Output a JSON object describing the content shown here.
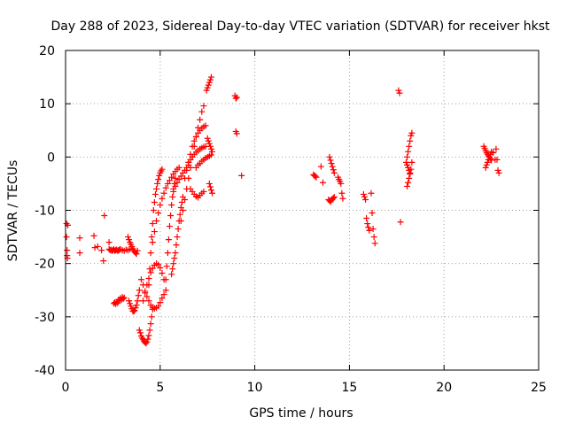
{
  "chart_data": {
    "type": "scatter",
    "title": "Day 288 of 2023, Sidereal Day-to-day VTEC variation (SDTVAR) for receiver hkst",
    "xlabel": "GPS time / hours",
    "ylabel": "SDTVAR / TECUs",
    "xlim": [
      0,
      25
    ],
    "ylim": [
      -40,
      20
    ],
    "x_ticks": [
      0,
      5,
      10,
      15,
      20,
      25
    ],
    "y_ticks": [
      -40,
      -30,
      -20,
      -10,
      0,
      10,
      20
    ],
    "grid": true,
    "marker": "plus",
    "color": "#ff0000",
    "series": [
      {
        "name": "SDTVAR",
        "segments": [
          {
            "x": [
              0.05,
              0.05,
              0.08,
              0.08,
              0.1,
              0.12
            ],
            "y": [
              -12.5,
              -15.0,
              -17.5,
              -18.5,
              -19.0,
              -12.8
            ]
          },
          {
            "x": [
              0.75,
              0.75,
              1.55,
              1.5,
              1.7,
              1.9,
              2.0,
              2.05,
              2.3
            ],
            "y": [
              -15.2,
              -18.0,
              -17.0,
              -14.8,
              -16.8,
              -17.5,
              -19.5,
              -11.0,
              -16.0
            ]
          },
          {
            "x": [
              2.3,
              2.35,
              2.4,
              2.45,
              2.5,
              2.55,
              2.6,
              2.65,
              2.7,
              2.75,
              2.8,
              2.85,
              2.9,
              3.0,
              3.1,
              3.2,
              3.3,
              3.4
            ],
            "y": [
              -17.3,
              -17.5,
              -17.4,
              -17.6,
              -17.5,
              -17.3,
              -17.6,
              -17.5,
              -17.4,
              -17.6,
              -17.5,
              -17.4,
              -17.3,
              -17.5,
              -17.6,
              -17.4,
              -17.5,
              -17.3
            ]
          },
          {
            "x": [
              2.55,
              2.6,
              2.65,
              2.7,
              2.75,
              2.8,
              2.85,
              2.9,
              2.95,
              3.0,
              3.05,
              3.1
            ],
            "y": [
              -27.5,
              -27.3,
              -27.6,
              -27.2,
              -27.4,
              -26.8,
              -27.0,
              -26.5,
              -26.8,
              -26.3,
              -26.6,
              -26.4
            ]
          },
          {
            "x": [
              3.3,
              3.35,
              3.4,
              3.45,
              3.5,
              3.55,
              3.6,
              3.65,
              3.7,
              3.75,
              3.8
            ],
            "y": [
              -15.0,
              -15.5,
              -16.0,
              -16.4,
              -16.8,
              -17.2,
              -17.5,
              -17.8,
              -18.0,
              -18.2,
              -17.6
            ]
          },
          {
            "x": [
              3.35,
              3.4,
              3.45,
              3.5,
              3.55,
              3.6,
              3.65,
              3.7,
              3.75,
              3.8,
              3.85,
              3.9
            ],
            "y": [
              -27.0,
              -27.5,
              -28.0,
              -28.5,
              -28.9,
              -29.0,
              -28.8,
              -28.3,
              -27.8,
              -27.0,
              -26.0,
              -25.0
            ]
          },
          {
            "x": [
              3.9,
              3.95,
              4.0,
              4.05,
              4.1,
              4.15,
              4.2,
              4.25,
              4.3,
              4.35,
              4.4,
              4.45,
              4.5,
              4.55,
              4.6
            ],
            "y": [
              -32.5,
              -33.0,
              -33.6,
              -34.0,
              -34.3,
              -34.6,
              -34.8,
              -35.0,
              -34.7,
              -34.2,
              -33.5,
              -32.5,
              -31.3,
              -30.0,
              -28.6
            ]
          },
          {
            "x": [
              4.0,
              4.1,
              4.2,
              4.3,
              4.4,
              4.5,
              4.6,
              4.7,
              4.8,
              4.9,
              5.0,
              5.1,
              5.2,
              5.3
            ],
            "y": [
              -23.0,
              -24.0,
              -25.2,
              -26.2,
              -27.0,
              -27.8,
              -28.2,
              -28.4,
              -28.3,
              -28.0,
              -27.3,
              -26.5,
              -25.8,
              -25.0
            ]
          },
          {
            "x": [
              4.1,
              4.2,
              4.3,
              4.4,
              4.5,
              4.6,
              4.7,
              4.8,
              4.9,
              5.0,
              5.1,
              5.2
            ],
            "y": [
              -27.0,
              -25.5,
              -24.0,
              -22.8,
              -21.7,
              -20.9,
              -20.3,
              -20.0,
              -20.2,
              -20.8,
              -21.8,
              -23.0
            ]
          },
          {
            "x": [
              4.4,
              4.45,
              4.5,
              4.55,
              4.6,
              4.65,
              4.7,
              4.75,
              4.8,
              4.85,
              4.9,
              4.95,
              5.0,
              5.05,
              5.1
            ],
            "y": [
              -24.0,
              -21.0,
              -18.0,
              -15.0,
              -12.5,
              -10.0,
              -8.5,
              -7.0,
              -6.0,
              -5.0,
              -4.2,
              -3.5,
              -3.0,
              -2.6,
              -2.3
            ]
          },
          {
            "x": [
              4.6,
              4.7,
              4.8,
              4.9,
              5.0,
              5.1,
              5.2,
              5.3,
              5.4,
              5.5,
              5.6,
              5.7,
              5.8,
              5.9,
              6.0
            ],
            "y": [
              -16.0,
              -14.0,
              -12.0,
              -10.5,
              -9.0,
              -7.8,
              -6.8,
              -5.8,
              -5.0,
              -4.4,
              -3.8,
              -3.2,
              -2.7,
              -2.3,
              -2.0
            ]
          },
          {
            "x": [
              5.3,
              5.35,
              5.4,
              5.45,
              5.5,
              5.55,
              5.6,
              5.65,
              5.7,
              5.75,
              5.8
            ],
            "y": [
              -23.0,
              -20.5,
              -18.0,
              -15.5,
              -13.0,
              -11.0,
              -9.0,
              -7.5,
              -6.0,
              -5.0,
              -4.0
            ]
          },
          {
            "x": [
              5.6,
              5.65,
              5.7,
              5.75,
              5.8,
              5.85,
              5.9,
              5.95,
              6.0,
              6.05,
              6.1,
              6.15,
              6.2
            ],
            "y": [
              -22.0,
              -21.0,
              -20.0,
              -19.0,
              -18.0,
              -16.5,
              -15.0,
              -13.5,
              -12.0,
              -10.8,
              -9.5,
              -8.5,
              -7.5
            ]
          },
          {
            "x": [
              5.7,
              5.8,
              5.9,
              6.0,
              6.1,
              6.2,
              6.3,
              6.4,
              6.5
            ],
            "y": [
              -6.5,
              -5.5,
              -4.8,
              -4.2,
              -3.6,
              -3.0,
              -2.5,
              -2.0,
              -1.5
            ]
          },
          {
            "x": [
              6.1,
              6.2,
              6.3,
              6.4,
              6.5,
              6.6,
              6.7,
              6.8,
              6.9,
              7.0,
              7.1,
              7.2,
              7.3
            ],
            "y": [
              -12.0,
              -10.0,
              -8.0,
              -6.0,
              -4.0,
              -2.0,
              0.0,
              2.0,
              3.8,
              5.5,
              7.0,
              8.5,
              9.6
            ]
          },
          {
            "x": [
              6.3,
              6.4,
              6.5,
              6.6,
              6.7,
              6.8,
              6.9,
              7.0,
              7.1,
              7.2,
              7.3,
              7.4
            ],
            "y": [
              -4.0,
              -2.5,
              -1.0,
              0.5,
              2.0,
              3.0,
              3.8,
              4.5,
              5.0,
              5.4,
              5.7,
              5.9
            ]
          },
          {
            "x": [
              6.5,
              6.6,
              6.7,
              6.8,
              6.9,
              7.0,
              7.1,
              7.2,
              7.3,
              7.4
            ],
            "y": [
              -1.0,
              -0.5,
              0.0,
              0.5,
              0.9,
              1.2,
              1.5,
              1.7,
              1.9,
              2.0
            ]
          },
          {
            "x": [
              6.6,
              6.7,
              6.8,
              6.9,
              7.0,
              7.1,
              7.2,
              7.3
            ],
            "y": [
              -6.0,
              -6.5,
              -7.0,
              -7.4,
              -7.6,
              -7.2,
              -6.8,
              -6.5
            ]
          },
          {
            "x": [
              6.9,
              7.0,
              7.1,
              7.2,
              7.3,
              7.4,
              7.5,
              7.6,
              7.7
            ],
            "y": [
              -2.0,
              -1.5,
              -1.2,
              -0.8,
              -0.5,
              -0.2,
              0.0,
              0.2,
              0.4
            ]
          },
          {
            "x": [
              7.45,
              7.5,
              7.55,
              7.6,
              7.65,
              7.7
            ],
            "y": [
              12.5,
              13.0,
              13.5,
              14.0,
              14.5,
              15.0
            ]
          },
          {
            "x": [
              7.5,
              7.55,
              7.6,
              7.65,
              7.7,
              7.75
            ],
            "y": [
              3.5,
              3.0,
              2.5,
              2.0,
              1.5,
              1.0
            ]
          },
          {
            "x": [
              7.6,
              7.65,
              7.7,
              7.75
            ],
            "y": [
              -5.0,
              -5.6,
              -6.2,
              -6.8
            ]
          },
          {
            "x": [
              8.95,
              9.0,
              9.05,
              9.0,
              9.05,
              9.3
            ],
            "y": [
              11.5,
              11.0,
              11.2,
              4.8,
              4.4,
              -3.5
            ]
          },
          {
            "x": [
              13.1,
              13.15,
              13.2,
              13.25,
              13.5,
              13.6
            ],
            "y": [
              -3.3,
              -3.5,
              -3.6,
              -3.8,
              -1.8,
              -4.8
            ]
          },
          {
            "x": [
              13.95,
              14.0,
              14.05,
              14.1,
              14.15,
              14.2
            ],
            "y": [
              0.0,
              -0.6,
              -1.2,
              -1.8,
              -2.4,
              -3.0
            ]
          },
          {
            "x": [
              13.9,
              13.95,
              14.0,
              14.05,
              14.1,
              14.15,
              14.2
            ],
            "y": [
              -8.0,
              -8.2,
              -8.4,
              -8.1,
              -7.9,
              -7.7,
              -7.5
            ]
          },
          {
            "x": [
              14.4,
              14.45,
              14.5,
              14.55,
              14.6,
              14.65
            ],
            "y": [
              -3.8,
              -4.2,
              -4.6,
              -5.0,
              -6.8,
              -7.8
            ]
          },
          {
            "x": [
              15.75,
              15.8,
              15.85,
              15.9,
              15.95,
              16.0,
              16.05
            ],
            "y": [
              -7.0,
              -7.5,
              -8.0,
              -11.5,
              -12.5,
              -13.2,
              -13.8
            ]
          },
          {
            "x": [
              16.15,
              16.2,
              16.25,
              16.3,
              16.35
            ],
            "y": [
              -6.8,
              -10.5,
              -13.5,
              -15.0,
              -16.2
            ]
          },
          {
            "x": [
              17.6,
              17.65,
              17.7
            ],
            "y": [
              12.5,
              12.0,
              -12.2
            ]
          },
          {
            "x": [
              18.05,
              18.1,
              18.15,
              18.2,
              18.25,
              18.3
            ],
            "y": [
              0.0,
              1.0,
              2.0,
              3.0,
              4.0,
              4.5
            ]
          },
          {
            "x": [
              18.05,
              18.1,
              18.15,
              18.2,
              18.25,
              18.3
            ],
            "y": [
              -5.5,
              -4.8,
              -4.0,
              -3.2,
              -2.3,
              -1.0
            ]
          },
          {
            "x": [
              18.0,
              18.05,
              18.1,
              18.15,
              18.2
            ],
            "y": [
              -1.0,
              -1.5,
              -2.0,
              -2.5,
              -3.0
            ]
          },
          {
            "x": [
              22.1,
              22.15,
              22.2,
              22.25,
              22.3,
              22.35,
              22.4,
              22.45,
              22.5
            ],
            "y": [
              2.0,
              1.6,
              1.2,
              0.8,
              0.5,
              0.2,
              0.0,
              -0.3,
              -0.6
            ]
          },
          {
            "x": [
              22.2,
              22.25,
              22.3,
              22.35,
              22.4,
              22.45,
              22.5,
              22.6,
              22.7
            ],
            "y": [
              -2.0,
              -1.5,
              -1.0,
              -0.5,
              0.0,
              0.5,
              1.0,
              0.8,
              -0.5
            ]
          },
          {
            "x": [
              22.75,
              22.8,
              22.85,
              22.9
            ],
            "y": [
              1.5,
              -0.5,
              -2.5,
              -3.0
            ]
          }
        ]
      }
    ]
  }
}
